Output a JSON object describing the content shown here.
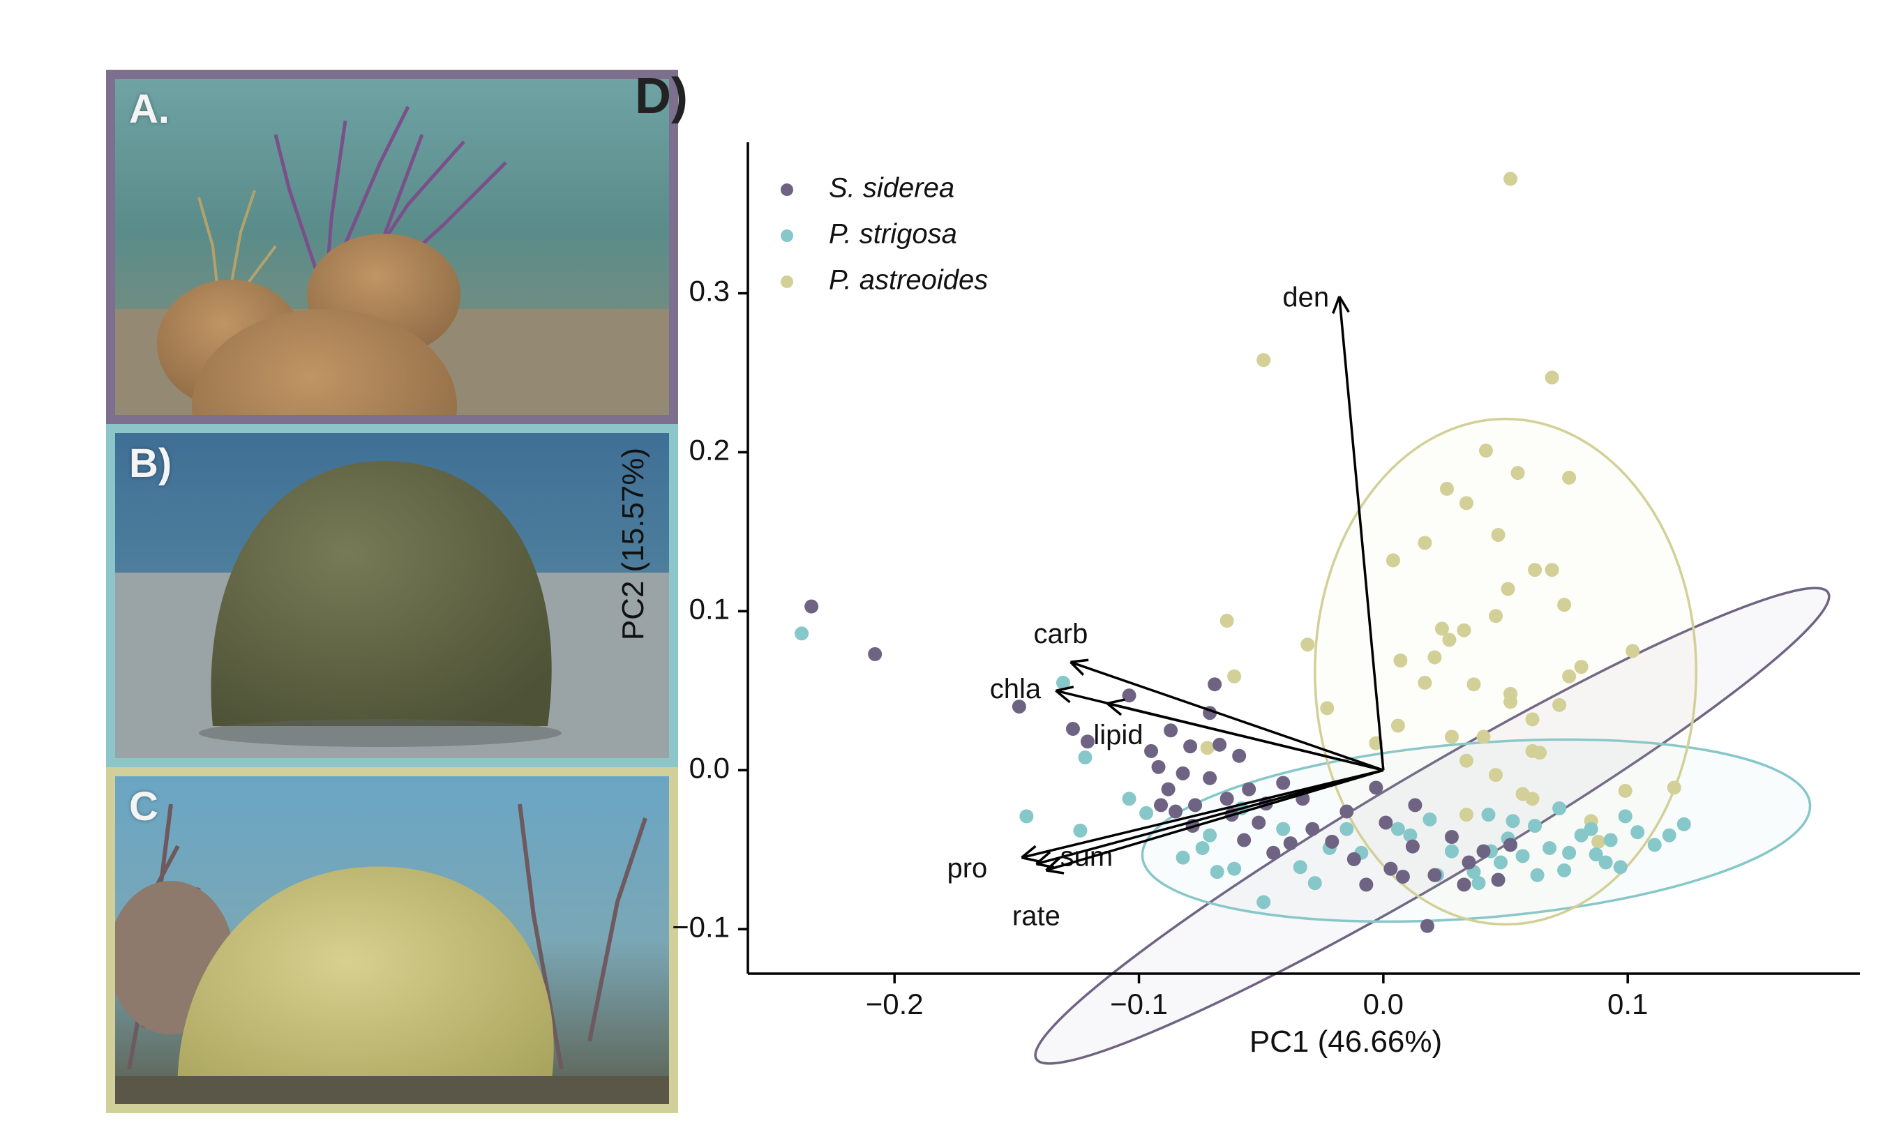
{
  "panels": {
    "a": {
      "label": "A.",
      "border_color": "#7d6f8e"
    },
    "b": {
      "label": "B)",
      "border_color": "#8dc6c8"
    },
    "c": {
      "label": "C",
      "border_color": "#d2d09a"
    },
    "d": {
      "label": "D)"
    }
  },
  "chart_data": {
    "type": "scatter",
    "subtype": "pca-biplot",
    "xlabel": "PC1 (46.66%)",
    "ylabel": "PC2 (15.57%)",
    "xlim": [
      -0.26,
      0.195
    ],
    "ylim": [
      -0.128,
      0.395
    ],
    "xticks": [
      -0.2,
      -0.1,
      0.0,
      0.1
    ],
    "xtick_labels": [
      "−0.2",
      "−0.1",
      "0.0",
      "0.1"
    ],
    "yticks": [
      -0.1,
      0.0,
      0.1,
      0.2,
      0.3
    ],
    "ytick_labels": [
      "−0.1",
      "0.0",
      "0.1",
      "0.2",
      "0.3"
    ],
    "grid": false,
    "legend_position": "top-left",
    "series": [
      {
        "name": "S. siderea",
        "color": "#6f6383",
        "ellipse": {
          "cx": 0.02,
          "cy": -0.035,
          "rx": 0.188,
          "ry": 0.034,
          "angle_deg": -30.5
        },
        "points": [
          [
            -0.234,
            0.103
          ],
          [
            -0.208,
            0.073
          ],
          [
            -0.149,
            0.04
          ],
          [
            -0.127,
            0.026
          ],
          [
            -0.104,
            0.047
          ],
          [
            -0.121,
            0.018
          ],
          [
            -0.087,
            0.025
          ],
          [
            -0.069,
            0.054
          ],
          [
            -0.079,
            0.015
          ],
          [
            -0.067,
            0.016
          ],
          [
            -0.059,
            0.009
          ],
          [
            -0.088,
            -0.012
          ],
          [
            -0.071,
            -0.005
          ],
          [
            -0.077,
            -0.022
          ],
          [
            -0.064,
            -0.018
          ],
          [
            -0.051,
            -0.033
          ],
          [
            -0.038,
            -0.046
          ],
          [
            -0.045,
            -0.052
          ],
          [
            -0.029,
            -0.037
          ],
          [
            -0.021,
            -0.045
          ],
          [
            -0.012,
            -0.056
          ],
          [
            0.003,
            -0.062
          ],
          [
            0.012,
            -0.048
          ],
          [
            0.021,
            -0.066
          ],
          [
            0.035,
            -0.058
          ],
          [
            0.047,
            -0.069
          ],
          [
            0.018,
            -0.098
          ],
          [
            0.008,
            -0.067
          ],
          [
            -0.007,
            -0.072
          ],
          [
            -0.091,
            -0.022
          ],
          [
            -0.082,
            -0.002
          ],
          [
            -0.055,
            -0.012
          ],
          [
            -0.095,
            0.012
          ],
          [
            -0.071,
            0.036
          ],
          [
            -0.057,
            -0.044
          ],
          [
            -0.033,
            -0.018
          ],
          [
            -0.015,
            -0.026
          ],
          [
            0.001,
            -0.033
          ],
          [
            0.028,
            -0.042
          ],
          [
            0.041,
            -0.051
          ],
          [
            0.033,
            -0.072
          ],
          [
            0.052,
            -0.047
          ],
          [
            0.013,
            -0.022
          ],
          [
            -0.003,
            -0.011
          ],
          [
            -0.041,
            -0.008
          ],
          [
            -0.062,
            -0.028
          ],
          [
            -0.048,
            -0.021
          ],
          [
            -0.078,
            -0.035
          ],
          [
            -0.085,
            -0.026
          ],
          [
            -0.092,
            0.002
          ]
        ]
      },
      {
        "name": "P. strigosa",
        "color": "#86c7c9",
        "ellipse": {
          "cx": 0.038,
          "cy": -0.038,
          "rx": 0.137,
          "ry": 0.055,
          "angle_deg": -4.5
        },
        "points": [
          [
            -0.238,
            0.086
          ],
          [
            -0.131,
            0.055
          ],
          [
            -0.122,
            0.008
          ],
          [
            -0.146,
            -0.029
          ],
          [
            -0.124,
            -0.038
          ],
          [
            -0.097,
            -0.027
          ],
          [
            -0.082,
            -0.055
          ],
          [
            -0.074,
            -0.049
          ],
          [
            -0.061,
            -0.062
          ],
          [
            -0.049,
            -0.083
          ],
          [
            -0.034,
            -0.061
          ],
          [
            -0.022,
            -0.049
          ],
          [
            -0.009,
            -0.052
          ],
          [
            0.006,
            -0.037
          ],
          [
            0.019,
            -0.031
          ],
          [
            0.028,
            -0.051
          ],
          [
            0.037,
            -0.064
          ],
          [
            0.043,
            -0.028
          ],
          [
            0.051,
            -0.043
          ],
          [
            0.057,
            -0.054
          ],
          [
            0.062,
            -0.035
          ],
          [
            0.068,
            -0.049
          ],
          [
            0.074,
            -0.063
          ],
          [
            0.081,
            -0.041
          ],
          [
            0.087,
            -0.053
          ],
          [
            0.093,
            -0.044
          ],
          [
            0.099,
            -0.029
          ],
          [
            0.104,
            -0.039
          ],
          [
            0.111,
            -0.047
          ],
          [
            0.117,
            -0.041
          ],
          [
            0.123,
            -0.034
          ],
          [
            0.097,
            -0.061
          ],
          [
            0.085,
            -0.037
          ],
          [
            0.072,
            -0.024
          ],
          [
            0.048,
            -0.058
          ],
          [
            0.039,
            -0.071
          ],
          [
            0.022,
            -0.066
          ],
          [
            0.011,
            -0.041
          ],
          [
            -0.015,
            -0.037
          ],
          [
            -0.028,
            -0.071
          ],
          [
            -0.058,
            -0.024
          ],
          [
            -0.071,
            -0.041
          ],
          [
            -0.104,
            -0.018
          ],
          [
            -0.068,
            -0.064
          ],
          [
            -0.041,
            -0.037
          ],
          [
            0.063,
            -0.066
          ],
          [
            0.076,
            -0.052
          ],
          [
            0.091,
            -0.058
          ],
          [
            0.053,
            -0.032
          ],
          [
            0.044,
            -0.051
          ]
        ]
      },
      {
        "name": "P. astreoides",
        "color": "#d2d096",
        "ellipse": {
          "cx": 0.05,
          "cy": 0.062,
          "rx": 0.078,
          "ry": 0.159,
          "angle_deg": 0
        },
        "points": [
          [
            0.052,
            0.372
          ],
          [
            -0.049,
            0.258
          ],
          [
            0.069,
            0.247
          ],
          [
            0.042,
            0.201
          ],
          [
            0.055,
            0.187
          ],
          [
            0.076,
            0.184
          ],
          [
            0.026,
            0.177
          ],
          [
            0.034,
            0.168
          ],
          [
            0.017,
            0.143
          ],
          [
            0.047,
            0.148
          ],
          [
            0.004,
            0.132
          ],
          [
            0.062,
            0.126
          ],
          [
            0.069,
            0.126
          ],
          [
            0.051,
            0.114
          ],
          [
            0.074,
            0.104
          ],
          [
            0.046,
            0.097
          ],
          [
            0.024,
            0.089
          ],
          [
            0.033,
            0.088
          ],
          [
            0.027,
            0.082
          ],
          [
            0.102,
            0.075
          ],
          [
            0.007,
            0.069
          ],
          [
            0.021,
            0.071
          ],
          [
            0.017,
            0.055
          ],
          [
            0.052,
            0.048
          ],
          [
            0.052,
            0.043
          ],
          [
            0.037,
            0.054
          ],
          [
            0.061,
            0.032
          ],
          [
            0.076,
            0.059
          ],
          [
            0.081,
            0.065
          ],
          [
            0.072,
            0.041
          ],
          [
            -0.064,
            0.094
          ],
          [
            -0.061,
            0.059
          ],
          [
            -0.031,
            0.079
          ],
          [
            -0.023,
            0.039
          ],
          [
            0.034,
            0.006
          ],
          [
            0.041,
            0.021
          ],
          [
            0.061,
            0.012
          ],
          [
            0.064,
            0.011
          ],
          [
            0.006,
            0.028
          ],
          [
            -0.003,
            0.017
          ],
          [
            0.046,
            -0.003
          ],
          [
            0.057,
            -0.015
          ],
          [
            0.061,
            -0.018
          ],
          [
            0.099,
            -0.013
          ],
          [
            0.119,
            -0.011
          ],
          [
            0.085,
            -0.032
          ],
          [
            0.088,
            -0.045
          ],
          [
            0.034,
            -0.028
          ],
          [
            0.028,
            0.021
          ],
          [
            -0.072,
            0.014
          ]
        ]
      }
    ],
    "loadings": [
      {
        "label": "den",
        "x": -0.018,
        "y": 0.298
      },
      {
        "label": "carb",
        "x": -0.128,
        "y": 0.068
      },
      {
        "label": "chla",
        "x": -0.134,
        "y": 0.05
      },
      {
        "label": "lipid",
        "x": -0.113,
        "y": 0.042
      },
      {
        "label": "pro",
        "x": -0.148,
        "y": -0.055
      },
      {
        "label": "sum",
        "x": -0.142,
        "y": -0.059
      },
      {
        "label": "rate",
        "x": -0.138,
        "y": -0.063
      }
    ]
  }
}
